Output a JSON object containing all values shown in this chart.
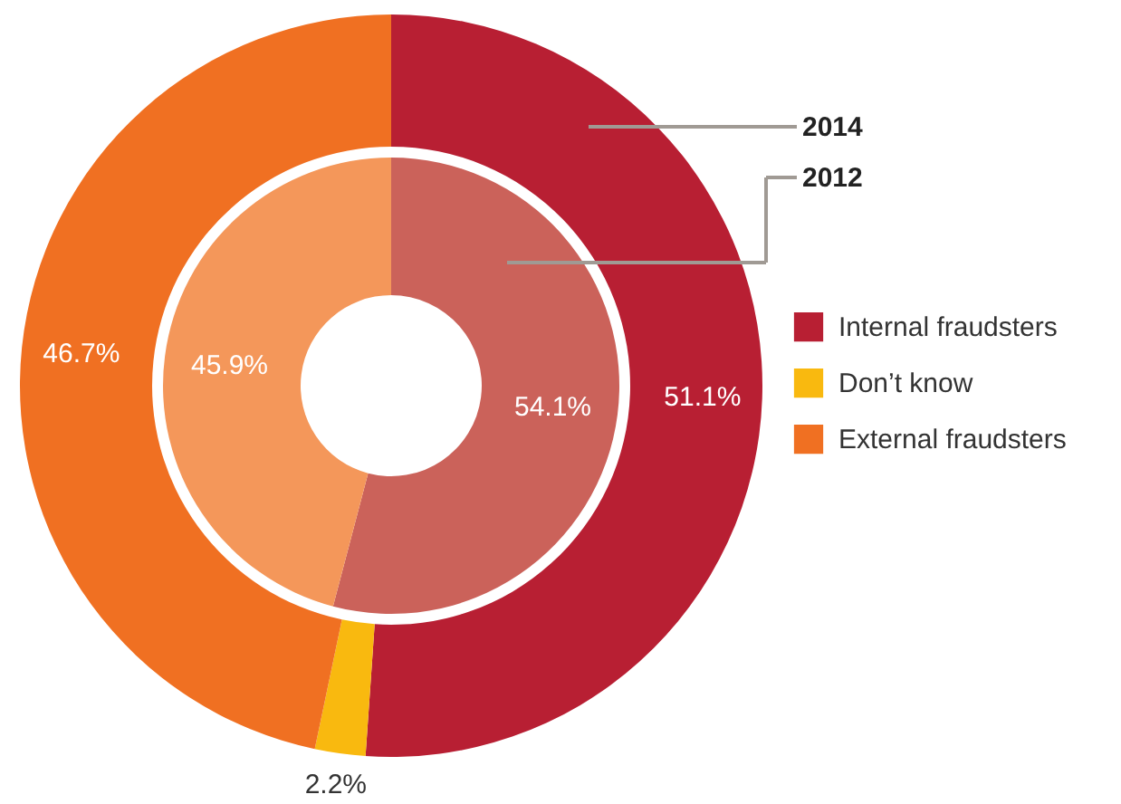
{
  "chart_data": {
    "type": "donut",
    "categories": [
      "Internal fraudsters",
      "Don’t know",
      "External fraudsters"
    ],
    "series": [
      {
        "name": "2014",
        "values": [
          51.1,
          2.2,
          46.7
        ],
        "colors": [
          "#b81f33",
          "#f9b90f",
          "#f07022"
        ],
        "value_labels": [
          "51.1%",
          "2.2%",
          "46.7%"
        ]
      },
      {
        "name": "2012",
        "values": [
          54.1,
          null,
          45.9
        ],
        "colors": [
          "#cb625a",
          "#f9b90f",
          "#f4975a"
        ],
        "value_labels": [
          "54.1%",
          null,
          "45.9%"
        ]
      }
    ],
    "legend": "right"
  }
}
